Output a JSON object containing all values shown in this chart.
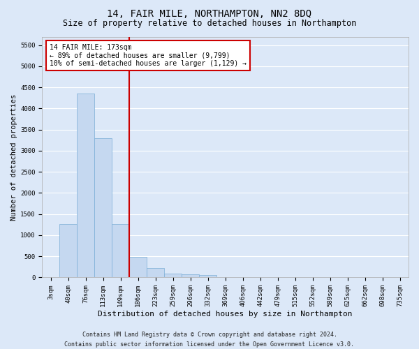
{
  "title": "14, FAIR MILE, NORTHAMPTON, NN2 8DQ",
  "subtitle": "Size of property relative to detached houses in Northampton",
  "xlabel": "Distribution of detached houses by size in Northampton",
  "ylabel": "Number of detached properties",
  "bar_color": "#c5d8f0",
  "bar_edge_color": "#7aaed6",
  "background_color": "#dce8f8",
  "fig_background_color": "#dce8f8",
  "grid_color": "#ffffff",
  "categories": [
    "3sqm",
    "40sqm",
    "76sqm",
    "113sqm",
    "149sqm",
    "186sqm",
    "223sqm",
    "259sqm",
    "296sqm",
    "332sqm",
    "369sqm",
    "406sqm",
    "442sqm",
    "479sqm",
    "515sqm",
    "552sqm",
    "589sqm",
    "625sqm",
    "662sqm",
    "698sqm",
    "735sqm"
  ],
  "values": [
    0,
    1270,
    4350,
    3300,
    1270,
    490,
    220,
    90,
    70,
    60,
    0,
    0,
    0,
    0,
    0,
    0,
    0,
    0,
    0,
    0,
    0
  ],
  "ylim": [
    0,
    5700
  ],
  "yticks": [
    0,
    500,
    1000,
    1500,
    2000,
    2500,
    3000,
    3500,
    4000,
    4500,
    5000,
    5500
  ],
  "vline_color": "#cc0000",
  "vline_x_index": 4.5,
  "annotation_text": "14 FAIR MILE: 173sqm\n← 89% of detached houses are smaller (9,799)\n10% of semi-detached houses are larger (1,129) →",
  "annotation_box_color": "#ffffff",
  "annotation_border_color": "#cc0000",
  "footer_line1": "Contains HM Land Registry data © Crown copyright and database right 2024.",
  "footer_line2": "Contains public sector information licensed under the Open Government Licence v3.0.",
  "title_fontsize": 10,
  "subtitle_fontsize": 8.5,
  "xlabel_fontsize": 8,
  "ylabel_fontsize": 7.5,
  "tick_fontsize": 6.5,
  "annotation_fontsize": 7,
  "footer_fontsize": 6
}
